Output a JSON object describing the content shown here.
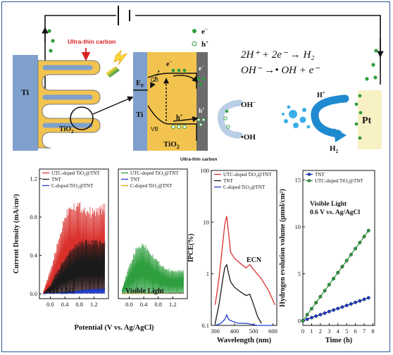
{
  "schematic": {
    "ultra_thin_carbon_top": "Ultra-thin carbon",
    "ultra_thin_carbon_bottom": "Ultra-thin carbon",
    "ti_left": "Ti",
    "ti_zoom": "Ti",
    "tio2_left": "TiO",
    "tio2_left_sub": "2",
    "tio2_zoom": "TiO",
    "tio2_zoom_sub": "2",
    "ef": "E",
    "ef_sub": "F",
    "cb": "CB",
    "vb": "VB",
    "e_minus": "e",
    "h_plus": "h",
    "legend_e": "e",
    "legend_h": "h",
    "oh_minus": "OH",
    "oh_radical": "•OH",
    "h_plus_ion": "H",
    "h2": "H",
    "h2_sub": "2",
    "pt": "Pt",
    "eq1": "2H⁺ + 2e⁻ → H₂",
    "eq2": "OH⁻ →• OH + e⁻",
    "colors": {
      "ti": "#7fa0cc",
      "tio2": "#f2c44f",
      "carbon": "#6b6b6b",
      "pt": "#f7f1c4",
      "electron": "#2e9e3e",
      "arrow": "#1f8ad0"
    }
  },
  "charts": [
    {
      "id": "current-am15g",
      "chart_data": {
        "type": "line",
        "legend": [
          "UTC-doped TiO₂@TNT",
          "TNT",
          "C-doped TiO₂@TNT"
        ],
        "colors": [
          "#d9302c",
          "#1a1a1a",
          "#1f3fcf"
        ],
        "ylabel": "Current Density (mA/cm²)",
        "xticks": [
          "0.0",
          "0.4",
          "0.8",
          "1.2"
        ],
        "yticks": [
          "0.0",
          "0.4",
          "0.8",
          "1.2"
        ],
        "xlim": [
          -0.3,
          1.6
        ],
        "ylim": [
          -0.05,
          1.3
        ],
        "annotation": "AM 1.5G",
        "series": [
          {
            "envelope": [
              [
                -0.2,
                0.02
              ],
              [
                0.0,
                0.25
              ],
              [
                0.2,
                0.55
              ],
              [
                0.4,
                0.85
              ],
              [
                0.55,
                0.98
              ],
              [
                0.8,
                0.97
              ],
              [
                1.0,
                0.92
              ],
              [
                1.2,
                0.9
              ],
              [
                1.5,
                0.95
              ]
            ]
          },
          {
            "envelope": [
              [
                -0.2,
                0.0
              ],
              [
                0.0,
                0.1
              ],
              [
                0.2,
                0.25
              ],
              [
                0.4,
                0.4
              ],
              [
                0.6,
                0.5
              ],
              [
                0.8,
                0.55
              ],
              [
                1.0,
                0.57
              ],
              [
                1.2,
                0.57
              ],
              [
                1.5,
                0.56
              ]
            ]
          },
          {
            "envelope": [
              [
                -0.2,
                0.0
              ],
              [
                0.2,
                0.01
              ],
              [
                0.6,
                0.03
              ],
              [
                1.0,
                0.05
              ],
              [
                1.5,
                0.06
              ]
            ]
          }
        ]
      }
    },
    {
      "id": "current-visible",
      "chart_data": {
        "type": "line",
        "legend": [
          "UTC-doped TiO₂@TNT",
          "TNT",
          "C-doped TiO₂@TNT"
        ],
        "colors": [
          "#2e9e3e",
          "#1f3fcf",
          "#e0a11b"
        ],
        "xticks": [
          "0.0",
          "0.4",
          "0.8",
          "1.2"
        ],
        "xlim": [
          -0.3,
          1.6
        ],
        "ylim": [
          -0.05,
          1.3
        ],
        "annotation": "Visible Light",
        "series": [
          {
            "envelope": [
              [
                -0.2,
                0.05
              ],
              [
                0.0,
                0.3
              ],
              [
                0.2,
                0.5
              ],
              [
                0.4,
                0.55
              ],
              [
                0.6,
                0.45
              ],
              [
                0.8,
                0.35
              ],
              [
                1.0,
                0.28
              ],
              [
                1.2,
                0.25
              ],
              [
                1.5,
                0.25
              ]
            ]
          },
          {
            "envelope": [
              [
                -0.2,
                0.0
              ],
              [
                1.5,
                0.01
              ]
            ]
          },
          {
            "envelope": [
              [
                -0.2,
                0.0
              ],
              [
                1.5,
                0.005
              ]
            ]
          }
        ]
      }
    },
    {
      "id": "ipce",
      "chart_data": {
        "type": "line",
        "legend": [
          "UTC-doped TiO₂@TNT",
          "TNT",
          "C-doped TiO₂@TNT"
        ],
        "colors": [
          "#d9302c",
          "#1a1a1a",
          "#1f3fcf"
        ],
        "xlabel": "Wavelength (nm)",
        "ylabel": "IPCE(%)",
        "xticks": [
          "300",
          "400",
          "500",
          "600"
        ],
        "yticks": [
          "0.1",
          "1",
          "10",
          "100"
        ],
        "xlim": [
          280,
          620
        ],
        "ylim": [
          0.1,
          100
        ],
        "log_y": true,
        "annotation": "ECN",
        "series": [
          {
            "name": "UTC-doped TiO₂@TNT",
            "x": [
              300,
              320,
              340,
              350,
              360,
              370,
              380,
              400,
              430,
              460,
              480,
              500,
              540,
              580,
              610
            ],
            "y": [
              0.25,
              0.8,
              4,
              9,
              13,
              6,
              2.6,
              2.0,
              1.6,
              1.3,
              1.5,
              1.2,
              0.8,
              0.45,
              0.25
            ]
          },
          {
            "name": "TNT",
            "x": [
              300,
              320,
              340,
              350,
              360,
              370,
              380,
              400,
              430,
              460,
              480,
              500,
              520,
              540
            ],
            "y": [
              0.11,
              0.25,
              0.8,
              1.3,
              1.5,
              1.0,
              0.7,
              0.55,
              0.45,
              0.38,
              0.4,
              0.25,
              0.15,
              0.11
            ]
          },
          {
            "name": "C-doped TiO₂@TNT",
            "x": [
              300,
              330,
              350,
              360,
              370,
              390,
              420,
              460,
              520,
              600
            ],
            "y": [
              0.1,
              0.11,
              0.13,
              0.16,
              0.13,
              0.12,
              0.11,
              0.11,
              0.1,
              0.1
            ]
          }
        ]
      }
    },
    {
      "id": "hydrogen",
      "chart_data": {
        "type": "line",
        "legend": [
          "TNT",
          "UTC-doped TiO₂@TNT"
        ],
        "colors": [
          "#1f3fcf",
          "#2e9e3e"
        ],
        "xlabel": "Time (h)",
        "ylabel": "Hydrogen evolution volume (μmol/cm²)",
        "xticks": [
          "0",
          "1",
          "2",
          "3",
          "4",
          "5",
          "6",
          "7",
          "8"
        ],
        "yticks": [
          "0",
          "5",
          "10",
          "15"
        ],
        "xlim": [
          0,
          8.2
        ],
        "ylim": [
          -0.5,
          16
        ],
        "annotation1": "Visible Light",
        "annotation2": "0.6 V vs. Ag/AgCl",
        "series": [
          {
            "name": "TNT",
            "x": [
              0,
              0.5,
              1,
              1.5,
              2,
              2.5,
              3,
              3.5,
              4,
              4.5,
              5,
              5.5,
              6,
              6.5,
              7,
              7.5
            ],
            "y": [
              0,
              0.16,
              0.33,
              0.49,
              0.65,
              0.81,
              0.98,
              1.14,
              1.3,
              1.46,
              1.63,
              1.79,
              1.95,
              2.11,
              2.28,
              2.44
            ]
          },
          {
            "name": "UTC-doped TiO₂@TNT",
            "x": [
              0,
              0.5,
              1,
              1.5,
              2,
              2.5,
              3,
              3.5,
              4,
              4.5,
              5,
              5.5,
              6,
              6.5,
              7,
              7.5
            ],
            "y": [
              0,
              0.64,
              1.28,
              1.92,
              2.56,
              3.2,
              3.84,
              4.48,
              5.12,
              5.76,
              6.4,
              7.04,
              7.68,
              8.32,
              8.96,
              9.6
            ]
          }
        ]
      }
    }
  ],
  "shared_xlabel": "Potential (V vs. Ag/AgCl)"
}
